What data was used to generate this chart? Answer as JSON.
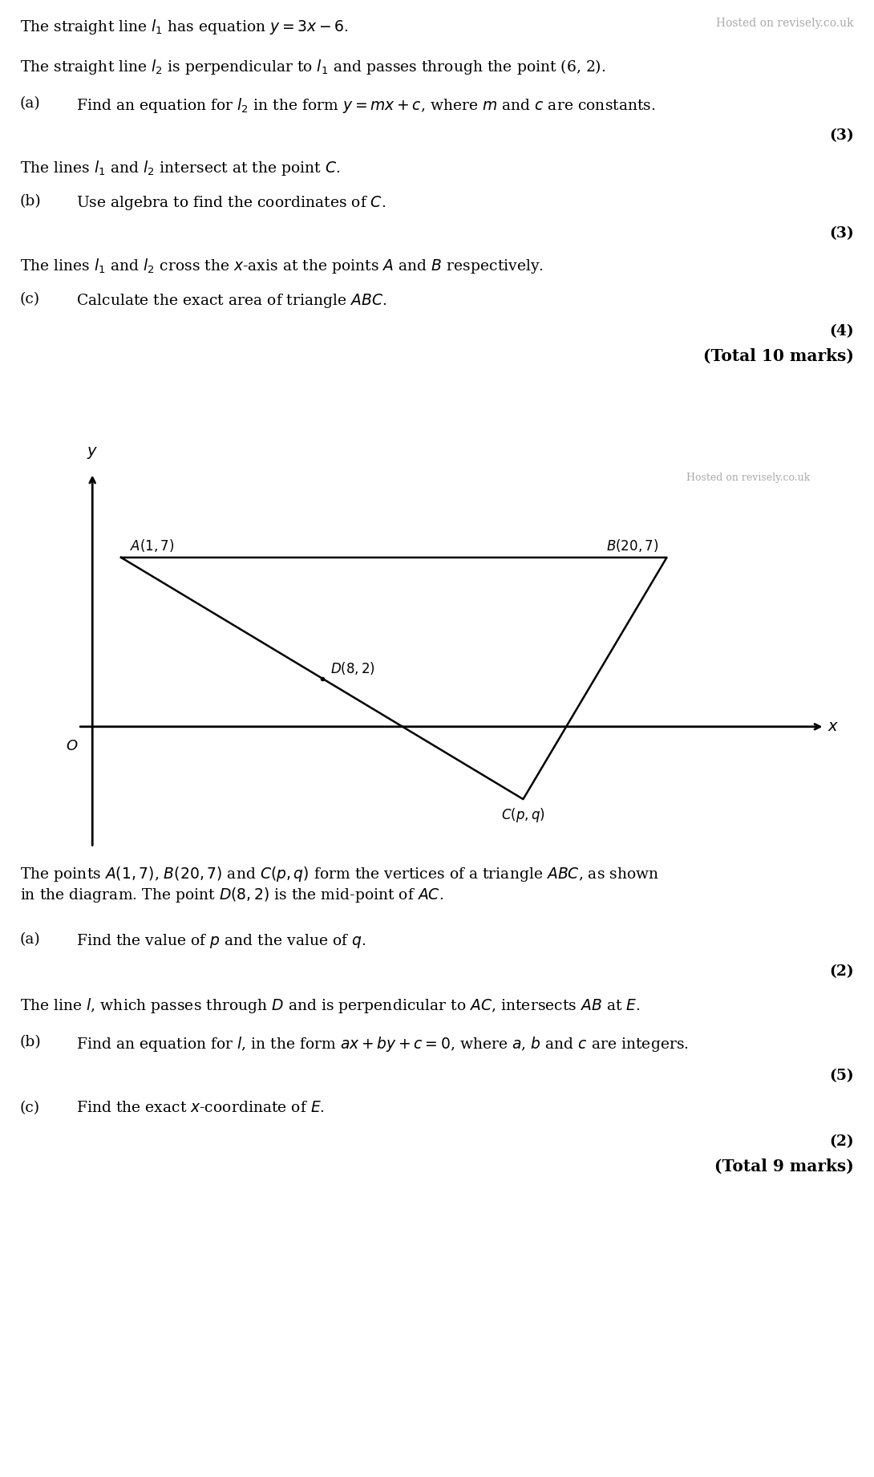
{
  "bg_color": "#ffffff",
  "text_color": "#000000",
  "watermark_color": "#aaaaaa",
  "font_size_body": 13.5,
  "font_size_marks": 13.5,
  "font_size_total": 14.5,
  "font_size_small": 10,
  "q1_line1": "The straight line $l_1$ has equation $y = 3x - 6$.",
  "q1_watermark": "Hosted on revisely.co.uk",
  "q1_line2": "The straight line $l_2$ is perpendicular to $l_1$ and passes through the point (6, 2).",
  "q1_pa_label": "(a)",
  "q1_pa_text": "Find an equation for $l_2$ in the form $y = mx +c$, where $m$ and $c$ are constants.",
  "q1_marks_a": "(3)",
  "q1_line3": "The lines $l_1$ and $l_2$ intersect at the point $C$.",
  "q1_pb_label": "(b)",
  "q1_pb_text": "Use algebra to find the coordinates of $C$.",
  "q1_marks_b": "(3)",
  "q1_line4": "The lines $l_1$ and $l_2$ cross the $x$-axis at the points $A$ and $B$ respectively.",
  "q1_pc_label": "(c)",
  "q1_pc_text": "Calculate the exact area of triangle $ABC$.",
  "q1_marks_c": "(4)",
  "q1_total": "(Total 10 marks)",
  "diag_A": [
    1,
    7
  ],
  "diag_B": [
    20,
    7
  ],
  "diag_C": [
    15,
    -3
  ],
  "diag_D": [
    8,
    2
  ],
  "diag_A_label": "$A(1, 7)$",
  "diag_B_label": "$B(20, 7)$",
  "diag_C_label": "$C(p, q)$",
  "diag_D_label": "$D(8, 2)$",
  "diag_O_label": "$O$",
  "diag_x_label": "$x$",
  "diag_y_label": "$y$",
  "diag_watermark": "Hosted on revisely.co.uk",
  "q2_intro1": "The points $A(1, 7)$, $B(20, 7)$ and $C(p, q)$ form the vertices of a triangle $ABC$, as shown",
  "q2_intro2": "in the diagram. The point $D(8, 2)$ is the mid-point of $AC$.",
  "q2_pa_label": "(a)",
  "q2_pa_text": "Find the value of $p$ and the value of $q$.",
  "q2_marks_a": "(2)",
  "q2_line_l": "The line $l$, which passes through $D$ and is perpendicular to $AC$, intersects $AB$ at $E$.",
  "q2_pb_label": "(b)",
  "q2_pb_text": "Find an equation for $l$, in the form $ax + by + c = 0$, where $a$, $b$ and $c$ are integers.",
  "q2_marks_b": "(5)",
  "q2_pc_label": "(c)",
  "q2_pc_text": "Find the exact $x$-coordinate of $E$.",
  "q2_marks_c": "(2)",
  "q2_total": "(Total 9 marks)"
}
